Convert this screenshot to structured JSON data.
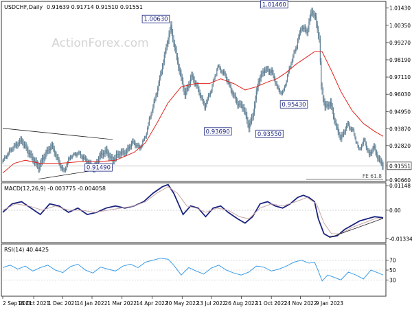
{
  "header": {
    "symbol": "USDCHF,Daily",
    "ohlc": "0.91639 0.91714 0.91510 0.91551"
  },
  "watermark": "ActionForex.com",
  "colors": {
    "candle": "#5f7f94",
    "sma": "#e0241c",
    "macd": "#1a237e",
    "signal": "#c8a6a6",
    "rsi": "#3d9de6",
    "trendline": "#222222",
    "label_border": "#1a237e"
  },
  "chart_data": [
    {
      "type": "candlestick",
      "title": "USDCHF,Daily",
      "ylim": [
        0.9066,
        1.0176
      ],
      "y_ticks": [
        "1.01430",
        "1.00350",
        "0.99270",
        "0.98190",
        "0.97110",
        "0.96030",
        "0.94950",
        "0.93870",
        "0.92820",
        "0.91551",
        "0.90660"
      ],
      "y_tick_values": [
        1.0143,
        1.0035,
        0.9927,
        0.9819,
        0.9711,
        0.9603,
        0.9495,
        0.9387,
        0.9282,
        0.91551,
        0.9066
      ],
      "last_price": 0.91551,
      "x_ticks": [
        "2 Sep 2021",
        "18 Oct 2021",
        "1 Dec 2021",
        "14 Jan 2022",
        "1 Mar 2022",
        "14 Apr 2022",
        "30 May 2022",
        "13 Jul 2022",
        "26 Aug 2022",
        "11 Oct 2022",
        "24 Nov 2022",
        "9 Jan 2023"
      ],
      "x_tick_index": [
        0,
        33,
        64,
        95,
        127,
        159,
        191,
        222,
        254,
        286,
        317,
        348
      ],
      "series": [
        {
          "name": "price",
          "type": "close_path",
          "points": [
            [
              0,
              0.918
            ],
            [
              10,
              0.927
            ],
            [
              20,
              0.931
            ],
            [
              30,
              0.922
            ],
            [
              38,
              0.914
            ],
            [
              45,
              0.923
            ],
            [
              52,
              0.928
            ],
            [
              58,
              0.92
            ],
            [
              65,
              0.912
            ],
            [
              72,
              0.921
            ],
            [
              80,
              0.924
            ],
            [
              88,
              0.919
            ],
            [
              97,
              0.914
            ],
            [
              103,
              0.921
            ],
            [
              110,
              0.925
            ],
            [
              117,
              0.919
            ],
            [
              124,
              0.923
            ],
            [
              132,
              0.925
            ],
            [
              138,
              0.93
            ],
            [
              146,
              0.927
            ],
            [
              152,
              0.934
            ],
            [
              157,
              0.946
            ],
            [
              164,
              0.962
            ],
            [
              170,
              0.978
            ],
            [
              176,
              0.995
            ],
            [
              179,
              1.003
            ],
            [
              182,
              0.993
            ],
            [
              188,
              0.975
            ],
            [
              194,
              0.96
            ],
            [
              201,
              0.972
            ],
            [
              208,
              0.963
            ],
            [
              215,
              0.953
            ],
            [
              222,
              0.963
            ],
            [
              229,
              0.978
            ],
            [
              236,
              0.973
            ],
            [
              243,
              0.963
            ],
            [
              250,
              0.955
            ],
            [
              256,
              0.952
            ],
            [
              262,
              0.94
            ],
            [
              266,
              0.947
            ],
            [
              272,
              0.968
            ],
            [
              279,
              0.976
            ],
            [
              286,
              0.975
            ],
            [
              293,
              0.963
            ],
            [
              298,
              0.961
            ],
            [
              305,
              0.976
            ],
            [
              312,
              0.989
            ],
            [
              318,
              1.003
            ],
            [
              324,
              0.999
            ],
            [
              329,
              1.013
            ],
            [
              333,
              1.008
            ],
            [
              337,
              0.995
            ],
            [
              339,
              0.965
            ],
            [
              343,
              0.952
            ],
            [
              349,
              0.955
            ],
            [
              355,
              0.94
            ],
            [
              360,
              0.932
            ],
            [
              367,
              0.942
            ],
            [
              373,
              0.937
            ],
            [
              379,
              0.925
            ],
            [
              385,
              0.932
            ],
            [
              390,
              0.922
            ],
            [
              395,
              0.927
            ],
            [
              400,
              0.92
            ],
            [
              405,
              0.916
            ]
          ]
        },
        {
          "name": "sma",
          "type": "line",
          "points": [
            [
              0,
              0.911
            ],
            [
              12,
              0.917
            ],
            [
              24,
              0.919
            ],
            [
              40,
              0.917
            ],
            [
              60,
              0.917
            ],
            [
              80,
              0.918
            ],
            [
              100,
              0.918
            ],
            [
              120,
              0.919
            ],
            [
              140,
              0.924
            ],
            [
              152,
              0.93
            ],
            [
              164,
              0.942
            ],
            [
              176,
              0.955
            ],
            [
              190,
              0.965
            ],
            [
              205,
              0.967
            ],
            [
              220,
              0.967
            ],
            [
              232,
              0.97
            ],
            [
              246,
              0.967
            ],
            [
              258,
              0.963
            ],
            [
              270,
              0.965
            ],
            [
              282,
              0.968
            ],
            [
              292,
              0.97
            ],
            [
              302,
              0.974
            ],
            [
              312,
              0.979
            ],
            [
              322,
              0.983
            ],
            [
              332,
              0.987
            ],
            [
              340,
              0.987
            ],
            [
              350,
              0.975
            ],
            [
              360,
              0.962
            ],
            [
              372,
              0.95
            ],
            [
              384,
              0.942
            ],
            [
              396,
              0.937
            ],
            [
              405,
              0.934
            ]
          ]
        },
        {
          "name": "trendline_upper",
          "type": "line",
          "points": [
            [
              0,
              0.939
            ],
            [
              117,
              0.932
            ]
          ]
        },
        {
          "name": "trendline_lower",
          "type": "line",
          "points": [
            [
              38,
              0.9072
            ],
            [
              117,
              0.9145
            ]
          ]
        }
      ],
      "annotations": [
        {
          "label": "1.00630",
          "x": 163,
          "y": 1.0074
        },
        {
          "label": "1.01460",
          "x": 289,
          "y": 1.0166
        },
        {
          "label": "0.93690",
          "x": 229,
          "y": 0.937
        },
        {
          "label": "0.93550",
          "x": 284,
          "y": 0.9355
        },
        {
          "label": "0.95430",
          "x": 310,
          "y": 0.954
        },
        {
          "label": "0.91490",
          "x": 102,
          "y": 0.9145
        },
        {
          "label": "FE 61.8",
          "x": 373,
          "y": 0.907
        }
      ]
    },
    {
      "type": "line",
      "title": "MACD(12,26,9) -0.003775 -0.004058",
      "ylim": [
        -0.0145,
        0.0122
      ],
      "y_ticks": [
        "0.01148",
        "0.00",
        "-0.01334"
      ],
      "y_tick_values": [
        0.01148,
        0.0,
        -0.01334
      ],
      "series": [
        {
          "name": "macd",
          "points": [
            [
              0,
              -0.001
            ],
            [
              10,
              0.003
            ],
            [
              20,
              0.004
            ],
            [
              30,
              0.001
            ],
            [
              40,
              -0.002
            ],
            [
              50,
              0.003
            ],
            [
              60,
              0.002
            ],
            [
              70,
              -0.001
            ],
            [
              80,
              0.001
            ],
            [
              90,
              -0.002
            ],
            [
              100,
              -0.001
            ],
            [
              110,
              0.001
            ],
            [
              120,
              0.002
            ],
            [
              130,
              0.001
            ],
            [
              140,
              0.002
            ],
            [
              150,
              0.004
            ],
            [
              160,
              0.008
            ],
            [
              170,
              0.011
            ],
            [
              176,
              0.012
            ],
            [
              182,
              0.008
            ],
            [
              192,
              -0.002
            ],
            [
              200,
              0.002
            ],
            [
              208,
              0.001
            ],
            [
              216,
              -0.003
            ],
            [
              224,
              0.001
            ],
            [
              232,
              0.002
            ],
            [
              240,
              -0.001
            ],
            [
              250,
              -0.004
            ],
            [
              258,
              -0.006
            ],
            [
              266,
              -0.003
            ],
            [
              274,
              0.003
            ],
            [
              282,
              0.004
            ],
            [
              290,
              0.002
            ],
            [
              298,
              0.001
            ],
            [
              306,
              0.003
            ],
            [
              314,
              0.006
            ],
            [
              320,
              0.007
            ],
            [
              326,
              0.006
            ],
            [
              332,
              0.004
            ],
            [
              336,
              -0.004
            ],
            [
              342,
              -0.011
            ],
            [
              348,
              -0.0125
            ],
            [
              356,
              -0.012
            ],
            [
              364,
              -0.009
            ],
            [
              372,
              -0.007
            ],
            [
              380,
              -0.005
            ],
            [
              388,
              -0.004
            ],
            [
              396,
              -0.003
            ],
            [
              405,
              -0.0035
            ]
          ]
        },
        {
          "name": "signal",
          "points": [
            [
              0,
              0.0
            ],
            [
              14,
              0.003
            ],
            [
              28,
              0.002
            ],
            [
              42,
              0.0
            ],
            [
              56,
              0.002
            ],
            [
              70,
              0.0
            ],
            [
              84,
              0.0
            ],
            [
              98,
              -0.001
            ],
            [
              112,
              0.0
            ],
            [
              126,
              0.001
            ],
            [
              140,
              0.002
            ],
            [
              152,
              0.004
            ],
            [
              164,
              0.008
            ],
            [
              176,
              0.011
            ],
            [
              186,
              0.008
            ],
            [
              196,
              0.002
            ],
            [
              206,
              0.001
            ],
            [
              216,
              -0.001
            ],
            [
              228,
              0.001
            ],
            [
              240,
              0.0
            ],
            [
              252,
              -0.003
            ],
            [
              262,
              -0.004
            ],
            [
              274,
              0.001
            ],
            [
              286,
              0.003
            ],
            [
              298,
              0.002
            ],
            [
              312,
              0.004
            ],
            [
              324,
              0.006
            ],
            [
              334,
              0.003
            ],
            [
              342,
              -0.006
            ],
            [
              350,
              -0.011
            ],
            [
              360,
              -0.011
            ],
            [
              372,
              -0.008
            ],
            [
              384,
              -0.006
            ],
            [
              396,
              -0.004
            ],
            [
              405,
              -0.004
            ]
          ]
        }
      ]
    },
    {
      "type": "line",
      "title": "RSI(14) 40.4425",
      "ylim": [
        0,
        100
      ],
      "y_ticks": [
        "70",
        "50",
        "30"
      ],
      "y_tick_values": [
        70,
        50,
        30
      ],
      "series": [
        {
          "name": "rsi",
          "points": [
            [
              0,
              55
            ],
            [
              8,
              60
            ],
            [
              16,
              52
            ],
            [
              24,
              58
            ],
            [
              32,
              48
            ],
            [
              40,
              55
            ],
            [
              48,
              60
            ],
            [
              56,
              50
            ],
            [
              64,
              45
            ],
            [
              72,
              57
            ],
            [
              80,
              62
            ],
            [
              88,
              50
            ],
            [
              96,
              44
            ],
            [
              104,
              56
            ],
            [
              112,
              52
            ],
            [
              120,
              48
            ],
            [
              128,
              58
            ],
            [
              136,
              62
            ],
            [
              144,
              55
            ],
            [
              152,
              66
            ],
            [
              160,
              70
            ],
            [
              168,
              74
            ],
            [
              176,
              72
            ],
            [
              182,
              60
            ],
            [
              190,
              40
            ],
            [
              198,
              55
            ],
            [
              206,
              48
            ],
            [
              214,
              42
            ],
            [
              222,
              54
            ],
            [
              230,
              60
            ],
            [
              238,
              50
            ],
            [
              246,
              44
            ],
            [
              254,
              40
            ],
            [
              262,
              46
            ],
            [
              270,
              58
            ],
            [
              278,
              56
            ],
            [
              286,
              48
            ],
            [
              294,
              52
            ],
            [
              302,
              58
            ],
            [
              310,
              66
            ],
            [
              318,
              70
            ],
            [
              326,
              64
            ],
            [
              332,
              66
            ],
            [
              336,
              48
            ],
            [
              340,
              28
            ],
            [
              346,
              40
            ],
            [
              352,
              36
            ],
            [
              360,
              30
            ],
            [
              368,
              46
            ],
            [
              376,
              40
            ],
            [
              384,
              32
            ],
            [
              392,
              50
            ],
            [
              400,
              44
            ],
            [
              405,
              40
            ]
          ]
        }
      ]
    }
  ]
}
